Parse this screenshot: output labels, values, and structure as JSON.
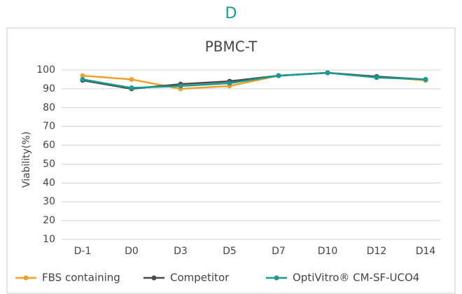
{
  "header": "D",
  "chart_data": {
    "type": "line",
    "title": "PBMC-T",
    "y_label": "Viability(%)",
    "categories": [
      "D-1",
      "D0",
      "D3",
      "D5",
      "D7",
      "D10",
      "D12",
      "D14"
    ],
    "series": [
      {
        "name": "FBS containing",
        "color": "#f0a02c",
        "values": [
          97,
          95,
          90,
          91.5,
          97,
          98.5,
          96.5,
          94.5
        ]
      },
      {
        "name": "Competitor",
        "color": "#4a4a4a",
        "values": [
          94.5,
          90,
          92.5,
          94,
          97,
          98.5,
          96.5,
          95
        ]
      },
      {
        "name": "OptiVitro® CM-SF-UCO4",
        "color": "#1a9a90",
        "values": [
          95,
          90.5,
          91.5,
          93,
          97,
          98.5,
          96,
          95
        ]
      }
    ],
    "ylim": [
      10,
      100
    ],
    "yticks": [
      10,
      20,
      30,
      40,
      50,
      60,
      70,
      80,
      90,
      100
    ],
    "grid": true,
    "legend": "bottom"
  }
}
